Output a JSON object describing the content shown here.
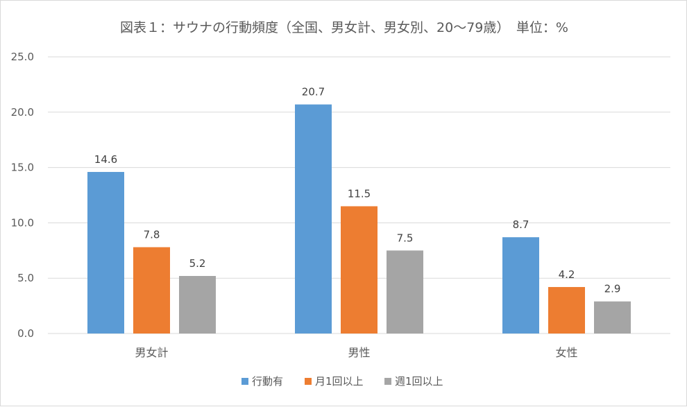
{
  "chart_data": {
    "type": "bar",
    "title": "図表１：サウナの行動頻度（全国、男女計、男女別、20～79歳）　単位：%",
    "categories": [
      "男女計",
      "男性",
      "女性"
    ],
    "series": [
      {
        "name": "行動有",
        "values": [
          14.6,
          20.7,
          8.7
        ],
        "color": "#5b9bd5"
      },
      {
        "name": "月1回以上",
        "values": [
          7.8,
          11.5,
          4.2
        ],
        "color": "#ed7d31"
      },
      {
        "name": "週1回以上",
        "values": [
          5.2,
          7.5,
          2.9
        ],
        "color": "#a5a5a5"
      }
    ],
    "ylim": [
      0,
      25
    ],
    "yticks": [
      "0.0",
      "5.0",
      "10.0",
      "15.0",
      "20.0",
      "25.0"
    ],
    "grid": true,
    "legend_position": "bottom",
    "colors": {
      "grid": "#d9d9d9",
      "text": "#595959"
    }
  }
}
